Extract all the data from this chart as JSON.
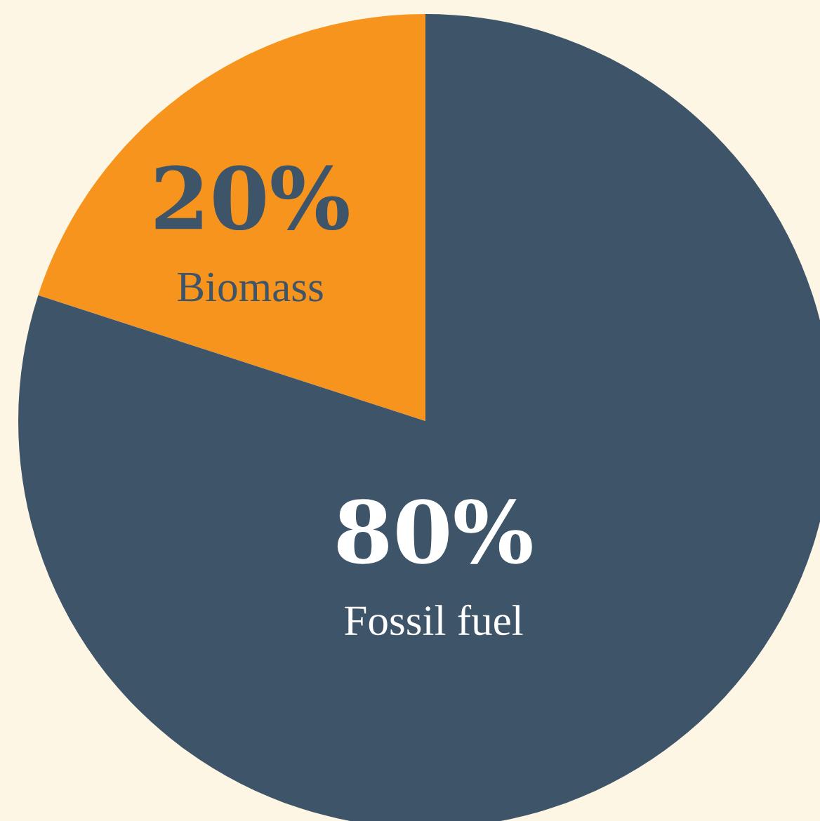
{
  "chart_data": {
    "type": "pie",
    "categories": [
      "Biomass",
      "Fossil fuel"
    ],
    "values": [
      20,
      80
    ],
    "colors": [
      "#f7941d",
      "#3e5468"
    ],
    "value_labels": [
      "20%",
      "80%"
    ]
  }
}
